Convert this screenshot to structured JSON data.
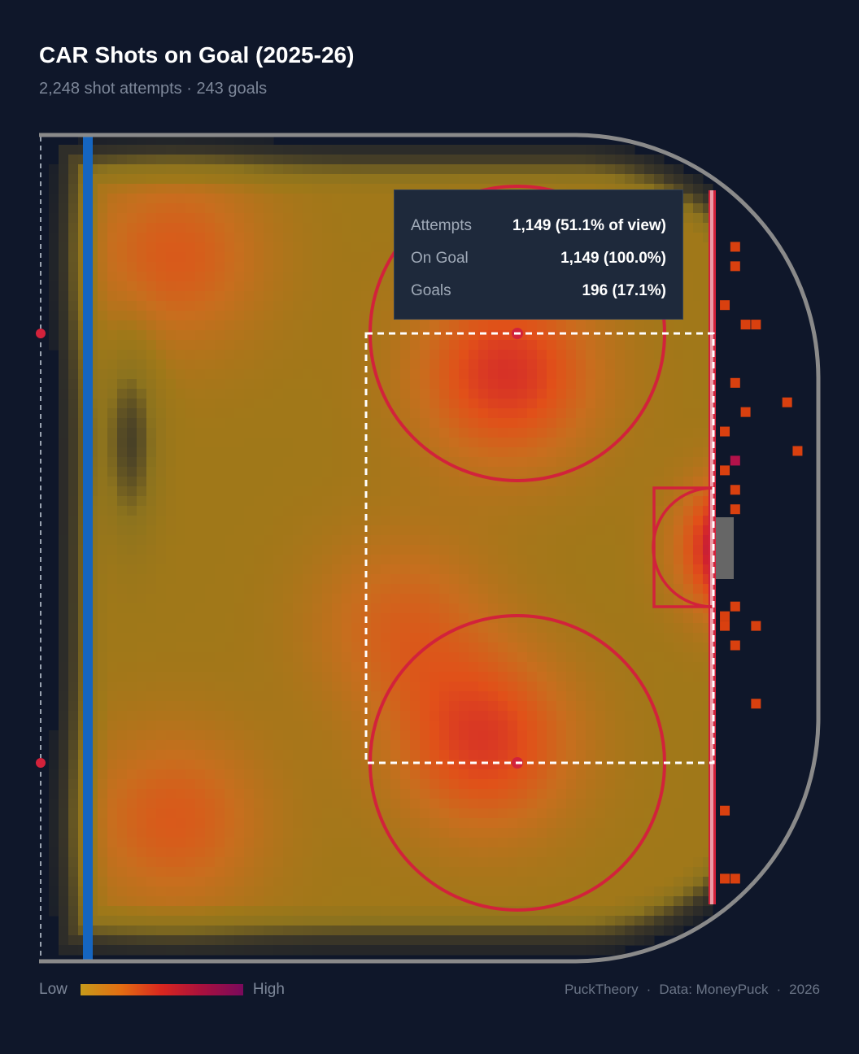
{
  "title": "CAR Shots on Goal (2025-26)",
  "subtitle": "2,248 shot attempts · 243 goals",
  "tooltip": {
    "rows": [
      {
        "label": "Attempts",
        "value": "1,149 (51.1% of view)"
      },
      {
        "label": "On Goal",
        "value": "1,149 (100.0%)"
      },
      {
        "label": "Goals",
        "value": "196 (17.1%)"
      }
    ]
  },
  "legend": {
    "low_label": "Low",
    "high_label": "High"
  },
  "footer": {
    "brand": "PuckTheory",
    "source": "Data: MoneyPuck",
    "year": "2026"
  },
  "colors": {
    "background": "#0f172a",
    "blue_line": "#1565c0",
    "red_line": "#d2223b",
    "board": "#8a8a8a",
    "shot_marker": "#d9400f",
    "goal_marker": "#b3124a",
    "net": "#666666"
  },
  "chart_data": {
    "type": "heatmap",
    "title": "CAR Shots on Goal (2025-26)",
    "subtitle": "2,248 shot attempts · 243 goals",
    "x_range_ft": [
      25,
      100
    ],
    "y_range_ft": [
      -42.5,
      42.5
    ],
    "hotspots": [
      {
        "x": 93,
        "y": 0,
        "intensity": 1.0
      },
      {
        "x": 70,
        "y": 18,
        "intensity": 0.55
      },
      {
        "x": 68,
        "y": -20,
        "intensity": 0.5
      },
      {
        "x": 38,
        "y": 30,
        "intensity": 0.35
      },
      {
        "x": 38,
        "y": -28,
        "intensity": 0.35
      },
      {
        "x": 60,
        "y": -8,
        "intensity": 0.3
      }
    ],
    "selection_box_ft": {
      "x": [
        58,
        89
      ],
      "y": [
        -22,
        22
      ]
    },
    "shot_markers_ft": [
      {
        "x": 92,
        "y": 31,
        "type": "shot"
      },
      {
        "x": 92,
        "y": 29,
        "type": "shot"
      },
      {
        "x": 93,
        "y": 23,
        "type": "shot"
      },
      {
        "x": 94,
        "y": 23,
        "type": "shot"
      },
      {
        "x": 91,
        "y": 25,
        "type": "shot"
      },
      {
        "x": 92,
        "y": 17,
        "type": "shot"
      },
      {
        "x": 97,
        "y": 15,
        "type": "shot"
      },
      {
        "x": 93,
        "y": 14,
        "type": "shot"
      },
      {
        "x": 91,
        "y": 12,
        "type": "shot"
      },
      {
        "x": 98,
        "y": 10,
        "type": "shot"
      },
      {
        "x": 92,
        "y": 9,
        "type": "goal"
      },
      {
        "x": 91,
        "y": 8,
        "type": "shot"
      },
      {
        "x": 92,
        "y": 6,
        "type": "shot"
      },
      {
        "x": 92,
        "y": 4,
        "type": "shot"
      },
      {
        "x": 92,
        "y": -6,
        "type": "shot"
      },
      {
        "x": 91,
        "y": -7,
        "type": "shot"
      },
      {
        "x": 91,
        "y": -8,
        "type": "shot"
      },
      {
        "x": 94,
        "y": -8,
        "type": "shot"
      },
      {
        "x": 92,
        "y": -10,
        "type": "shot"
      },
      {
        "x": 94,
        "y": -16,
        "type": "shot"
      },
      {
        "x": 91,
        "y": -27,
        "type": "shot"
      },
      {
        "x": 91,
        "y": -34,
        "type": "shot"
      },
      {
        "x": 92,
        "y": -34,
        "type": "shot"
      }
    ]
  }
}
